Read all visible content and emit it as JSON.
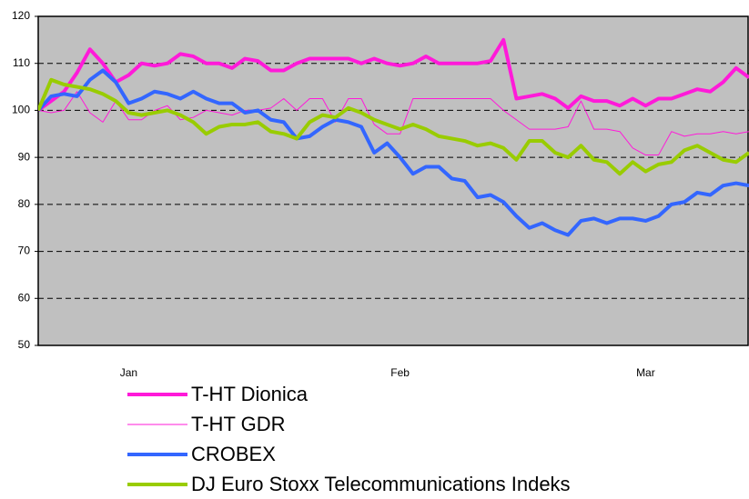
{
  "chart_data": {
    "type": "line",
    "categories": [
      null,
      null,
      null,
      null,
      null,
      null,
      null,
      "Jan",
      null,
      null,
      null,
      null,
      null,
      null,
      null,
      null,
      null,
      null,
      null,
      null,
      null,
      null,
      null,
      null,
      null,
      null,
      null,
      null,
      "Feb",
      null,
      null,
      null,
      null,
      null,
      null,
      null,
      null,
      null,
      null,
      null,
      null,
      null,
      null,
      null,
      null,
      null,
      null,
      "Mar",
      null,
      null,
      null,
      null,
      null,
      null,
      null,
      null
    ],
    "ylim": [
      50,
      120
    ],
    "yticks": [
      50,
      60,
      70,
      80,
      90,
      100,
      110,
      120
    ],
    "grid": true,
    "series": [
      {
        "name": "T-HT Dionica",
        "color": "#ff1ad9",
        "width": 4,
        "values": [
          100,
          102,
          104,
          108,
          113,
          110,
          106,
          107.5,
          110,
          109.5,
          110,
          112,
          111.5,
          110,
          110,
          109,
          111,
          110.5,
          108.5,
          108.5,
          110,
          111,
          111,
          111,
          111,
          110,
          111,
          110,
          109.5,
          110,
          111.5,
          110,
          110,
          110,
          110,
          110.5,
          115,
          102.5,
          103,
          103.5,
          102.5,
          100.5,
          103,
          102,
          102,
          101,
          102.5,
          101,
          102.5,
          102.5,
          103.5,
          104.5,
          104,
          106,
          109,
          107
        ]
      },
      {
        "name": "T-HT GDR",
        "color": "#ff1ad9",
        "width": 1,
        "values": [
          100,
          99.5,
          100,
          104,
          99.5,
          97.5,
          102,
          98,
          98,
          100,
          101,
          98,
          98.5,
          100,
          99.5,
          99,
          100,
          100,
          100.5,
          102.5,
          100,
          102.5,
          102.5,
          97.5,
          102.5,
          102.5,
          97,
          95,
          95,
          102.5,
          102.5,
          102.5,
          102.5,
          102.5,
          102.5,
          102.5,
          100,
          98,
          96,
          96,
          96,
          96.5,
          102,
          96,
          96,
          95.5,
          92,
          90.5,
          90.5,
          95.5,
          94.5,
          95,
          95,
          95.5,
          95,
          95.5
        ]
      },
      {
        "name": "CROBEX",
        "color": "#3366ff",
        "width": 4,
        "values": [
          100,
          103,
          103.5,
          103,
          106.5,
          108.5,
          106,
          101.5,
          102.5,
          104,
          103.5,
          102.5,
          104,
          102.5,
          101.5,
          101.5,
          99.5,
          100,
          98,
          97.5,
          94,
          94.5,
          96.5,
          98,
          97.5,
          96.5,
          91,
          93,
          90,
          86.5,
          88,
          88,
          85.5,
          85,
          81.5,
          82,
          80.5,
          77.5,
          75,
          76,
          74.5,
          73.5,
          76.5,
          77,
          76,
          77,
          77,
          76.5,
          77.5,
          80,
          80.5,
          82.5,
          82,
          84,
          84.5,
          84
        ]
      },
      {
        "name": "DJ Euro Stoxx Telecommunications Indeks",
        "color": "#99cc00",
        "width": 4,
        "values": [
          100,
          106.5,
          105.5,
          105,
          104.5,
          103.5,
          102,
          99.5,
          99,
          99.5,
          100,
          99,
          97.5,
          95,
          96.5,
          97,
          97,
          97.5,
          95.5,
          95,
          94,
          97.5,
          99,
          98.5,
          100.5,
          99.5,
          98,
          97,
          96,
          97,
          96,
          94.5,
          94,
          93.5,
          92.5,
          93,
          92,
          89.5,
          93.5,
          93.5,
          91,
          90,
          92.5,
          89.5,
          89,
          86.5,
          89,
          87,
          88.5,
          89,
          91.5,
          92.5,
          91,
          89.5,
          89,
          91
        ]
      }
    ]
  }
}
